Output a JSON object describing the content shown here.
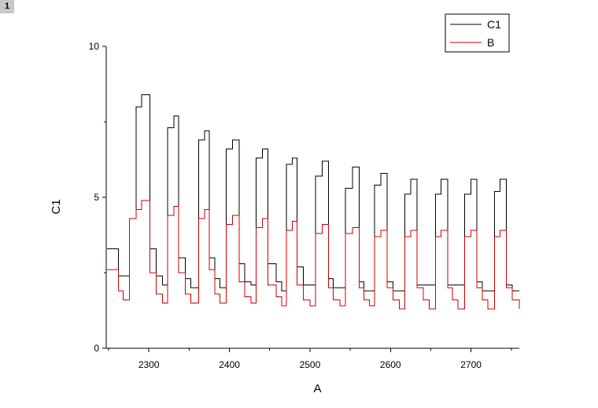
{
  "page": {
    "badge": "1"
  },
  "chart_data": {
    "type": "line",
    "title": "",
    "xlabel": "A",
    "ylabel": "C1",
    "xlim": [
      2247,
      2760
    ],
    "ylim": [
      0,
      10
    ],
    "xticks": [
      2300,
      2400,
      2500,
      2600,
      2700
    ],
    "yticks": [
      0,
      5,
      10
    ],
    "xtick_labels": [
      "2300",
      "2400",
      "2500",
      "2600",
      "2700"
    ],
    "ytick_labels": [
      "0",
      "5",
      "10"
    ],
    "grid": false,
    "legend_position": "top-right",
    "line_style": "step",
    "colors": {
      "C1": "#000000",
      "B": "#cc0000"
    },
    "series": [
      {
        "name": "C1",
        "color": "#000000",
        "x": [
          2248,
          2255,
          2262,
          2268,
          2276,
          2284,
          2291,
          2301,
          2309,
          2317,
          2323,
          2331,
          2337,
          2345,
          2352,
          2362,
          2369,
          2375,
          2382,
          2388,
          2396,
          2404,
          2412,
          2419,
          2427,
          2433,
          2441,
          2448,
          2458,
          2465,
          2471,
          2478,
          2484,
          2492,
          2500,
          2507,
          2515,
          2523,
          2529,
          2537,
          2544,
          2553,
          2561,
          2567,
          2574,
          2580,
          2588,
          2596,
          2603,
          2611,
          2618,
          2625,
          2633,
          2641,
          2648,
          2656,
          2663,
          2671,
          2677,
          2684,
          2692,
          2700,
          2707,
          2714,
          2721,
          2729,
          2736,
          2744,
          2751,
          2760
        ],
        "y": [
          3.3,
          3.3,
          2.4,
          2.4,
          4.3,
          8.0,
          8.4,
          3.3,
          2.4,
          2.1,
          7.3,
          7.7,
          3.0,
          2.3,
          2.0,
          6.9,
          7.2,
          3.0,
          2.3,
          2.0,
          6.6,
          6.9,
          2.8,
          2.2,
          2.1,
          6.3,
          6.6,
          2.8,
          2.2,
          1.9,
          6.1,
          6.3,
          2.7,
          2.1,
          2.1,
          5.7,
          6.2,
          2.3,
          2.0,
          2.0,
          5.3,
          6.0,
          2.2,
          1.9,
          1.9,
          5.4,
          5.8,
          2.2,
          1.9,
          1.9,
          5.1,
          5.6,
          2.1,
          2.1,
          2.1,
          5.1,
          5.6,
          2.1,
          2.1,
          2.1,
          5.1,
          5.6,
          2.2,
          1.9,
          1.9,
          5.2,
          5.6,
          2.1,
          1.9,
          1.9
        ]
      },
      {
        "name": "B",
        "color": "#cc0000",
        "x": [
          2248,
          2255,
          2262,
          2268,
          2276,
          2284,
          2291,
          2301,
          2309,
          2317,
          2323,
          2331,
          2337,
          2345,
          2352,
          2362,
          2369,
          2375,
          2382,
          2388,
          2396,
          2404,
          2412,
          2419,
          2427,
          2433,
          2441,
          2448,
          2458,
          2465,
          2471,
          2478,
          2484,
          2492,
          2500,
          2507,
          2515,
          2523,
          2529,
          2537,
          2544,
          2553,
          2561,
          2567,
          2574,
          2580,
          2588,
          2596,
          2603,
          2611,
          2618,
          2625,
          2633,
          2641,
          2648,
          2656,
          2663,
          2671,
          2677,
          2684,
          2692,
          2700,
          2707,
          2714,
          2721,
          2729,
          2736,
          2744,
          2751,
          2760
        ],
        "y": [
          2.6,
          2.6,
          1.9,
          1.6,
          4.3,
          4.6,
          4.9,
          2.5,
          1.8,
          1.5,
          4.4,
          4.7,
          2.5,
          1.8,
          1.5,
          4.3,
          4.6,
          2.6,
          1.8,
          1.5,
          4.1,
          4.4,
          2.2,
          1.7,
          1.5,
          4.0,
          4.3,
          2.1,
          1.7,
          1.4,
          3.9,
          4.2,
          2.1,
          1.6,
          1.4,
          3.8,
          4.1,
          2.0,
          1.6,
          1.4,
          3.8,
          4.0,
          2.0,
          1.6,
          1.4,
          3.7,
          3.9,
          2.0,
          1.6,
          1.3,
          3.7,
          3.9,
          2.0,
          1.6,
          1.3,
          3.7,
          3.9,
          2.0,
          1.6,
          1.3,
          3.7,
          3.9,
          2.0,
          1.6,
          1.3,
          3.7,
          3.9,
          2.0,
          1.6,
          1.3
        ]
      }
    ]
  }
}
